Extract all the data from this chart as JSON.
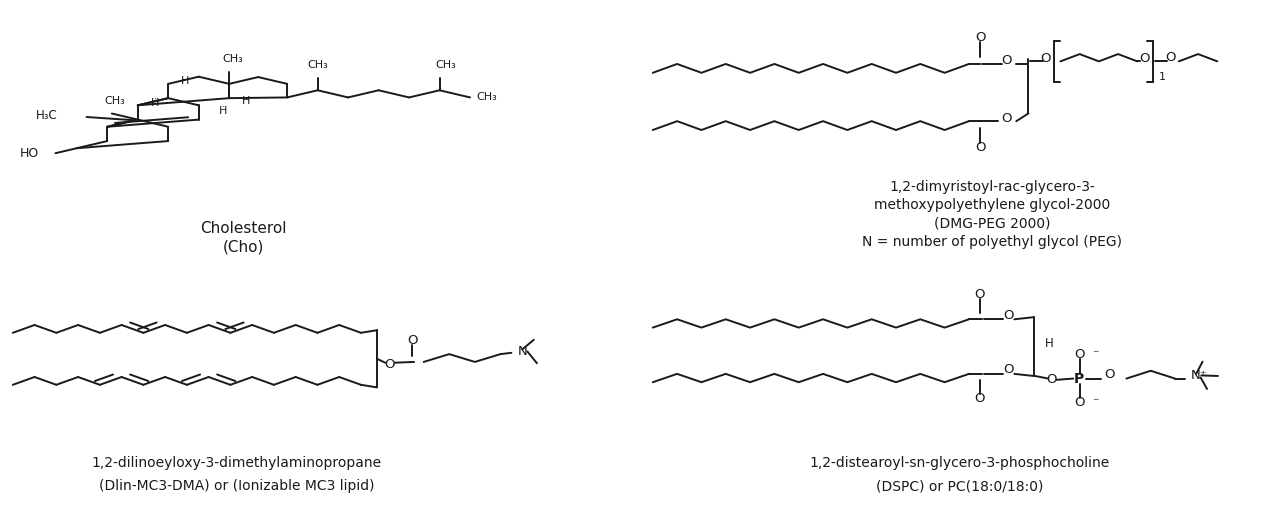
{
  "background_color": "#ffffff",
  "labels": {
    "cholesterol_line1": "Cholesterol",
    "cholesterol_line2": "(Cho)",
    "dmg_peg_line1": "1,2-dimyristoyl-rac-glycero-3-",
    "dmg_peg_line2": "methoxypolyethylene glycol-2000",
    "dmg_peg_line3": "(DMG-PEG 2000)",
    "dmg_peg_line4": "N = number of polyethyl glycol (PEG)",
    "dlin_line1": "1,2-dilinoeyloxy-3-dimethylaminopropane",
    "dlin_line2": "(Dlin-MC3-DMA) or (Ionizable MC3 lipid)",
    "dspc_line1": "1,2-distearoyl-sn-glycero-3-phosphocholine",
    "dspc_line2": "(DSPC) or PC(18:0/18:0)"
  },
  "label_fontsize": 10,
  "figsize": [
    12.8,
    5.2
  ],
  "dpi": 100
}
